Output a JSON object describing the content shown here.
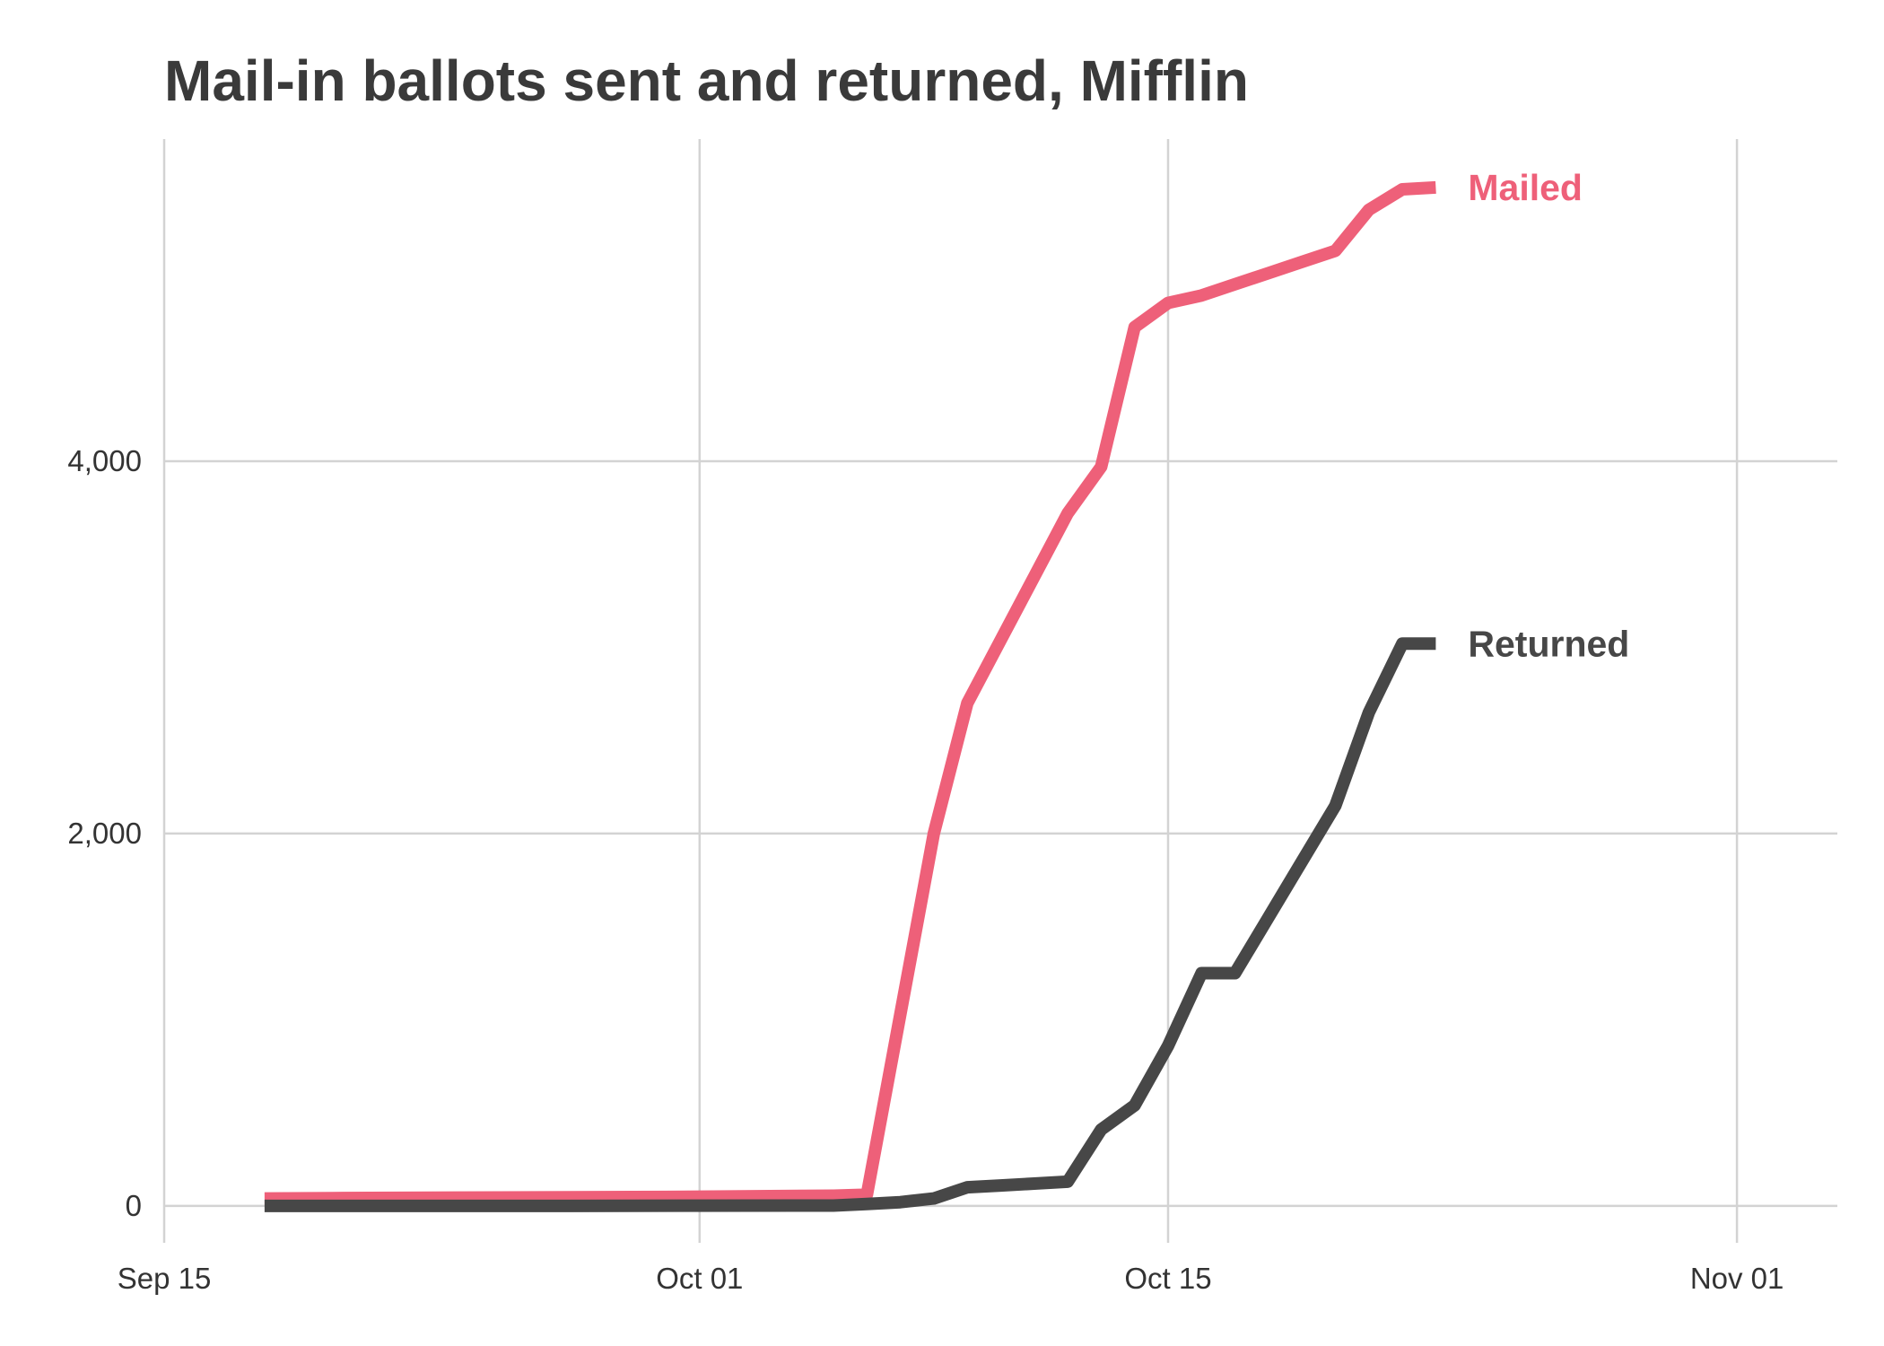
{
  "chart_data": {
    "type": "line",
    "title": "Mail-in ballots sent and returned, Mifflin",
    "xlabel": "",
    "ylabel": "",
    "x_ticks": [
      {
        "date": "2020-09-15",
        "label": "Sep 15"
      },
      {
        "date": "2020-10-01",
        "label": "Oct 01"
      },
      {
        "date": "2020-10-15",
        "label": "Oct 15"
      },
      {
        "date": "2020-11-01",
        "label": "Nov 01"
      }
    ],
    "y_ticks": [
      {
        "value": 0,
        "label": "0"
      },
      {
        "value": 2000,
        "label": "2,000"
      },
      {
        "value": 4000,
        "label": "4,000"
      }
    ],
    "xlim": [
      "2020-09-15",
      "2020-11-04"
    ],
    "ylim": [
      -150,
      5730
    ],
    "grid": true,
    "legend": "direct labels at line ends",
    "series": [
      {
        "name": "Mailed",
        "color": "#ee6079",
        "points": [
          [
            "2020-09-18",
            40
          ],
          [
            "2020-09-20",
            42
          ],
          [
            "2020-09-25",
            45
          ],
          [
            "2020-09-30",
            48
          ],
          [
            "2020-10-05",
            55
          ],
          [
            "2020-10-06",
            60
          ],
          [
            "2020-10-08",
            2000
          ],
          [
            "2020-10-09",
            2700
          ],
          [
            "2020-10-10",
            3040
          ],
          [
            "2020-10-11",
            3380
          ],
          [
            "2020-10-12",
            3720
          ],
          [
            "2020-10-13",
            3970
          ],
          [
            "2020-10-14",
            4720
          ],
          [
            "2020-10-15",
            4850
          ],
          [
            "2020-10-16",
            4890
          ],
          [
            "2020-10-17",
            4950
          ],
          [
            "2020-10-18",
            5010
          ],
          [
            "2020-10-19",
            5070
          ],
          [
            "2020-10-20",
            5130
          ],
          [
            "2020-10-21",
            5350
          ],
          [
            "2020-10-22",
            5460
          ],
          [
            "2020-10-23",
            5470
          ]
        ]
      },
      {
        "name": "Returned",
        "color": "#474747",
        "points": [
          [
            "2020-09-18",
            0
          ],
          [
            "2020-09-25",
            0
          ],
          [
            "2020-10-05",
            2
          ],
          [
            "2020-10-06",
            10
          ],
          [
            "2020-10-07",
            20
          ],
          [
            "2020-10-08",
            40
          ],
          [
            "2020-10-09",
            100
          ],
          [
            "2020-10-10",
            110
          ],
          [
            "2020-10-11",
            120
          ],
          [
            "2020-10-12",
            130
          ],
          [
            "2020-10-13",
            410
          ],
          [
            "2020-10-14",
            540
          ],
          [
            "2020-10-15",
            860
          ],
          [
            "2020-10-16",
            1250
          ],
          [
            "2020-10-17",
            1250
          ],
          [
            "2020-10-18",
            1550
          ],
          [
            "2020-10-19",
            1850
          ],
          [
            "2020-10-20",
            2150
          ],
          [
            "2020-10-21",
            2650
          ],
          [
            "2020-10-22",
            3020
          ],
          [
            "2020-10-23",
            3020
          ]
        ]
      }
    ]
  }
}
